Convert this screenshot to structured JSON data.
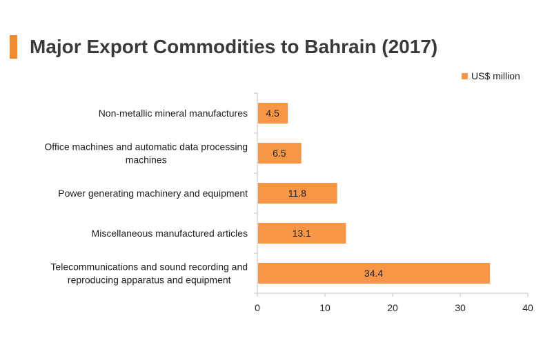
{
  "header": {
    "title": "Major Export Commodities to Bahrain (2017)"
  },
  "legend": {
    "label": "US$ million"
  },
  "colors": {
    "accent": "#f28a2e",
    "bar": "#f79646",
    "axis": "#bfbfbf",
    "text": "#1e1e1e"
  },
  "chart_data": {
    "type": "bar",
    "orientation": "horizontal",
    "title": "Major Export Commodities to Bahrain (2017)",
    "xlabel": "",
    "ylabel": "",
    "xlim": [
      0,
      40
    ],
    "xticks": [
      0,
      10,
      20,
      30,
      40
    ],
    "grid": false,
    "legend_position": "top-right",
    "categories": [
      [
        "Non-metallic mineral manufactures"
      ],
      [
        "Office machines and automatic data processing",
        "machines"
      ],
      [
        "Power generating machinery and equipment"
      ],
      [
        "Miscellaneous manufactured articles"
      ],
      [
        "Telecommunications and sound recording and",
        "reproducing apparatus and equipment"
      ]
    ],
    "series": [
      {
        "name": "US$ million",
        "values": [
          4.5,
          6.5,
          11.8,
          13.1,
          34.4
        ]
      }
    ],
    "data_labels": [
      "4.5",
      "6.5",
      "11.8",
      "13.1",
      "34.4"
    ]
  }
}
